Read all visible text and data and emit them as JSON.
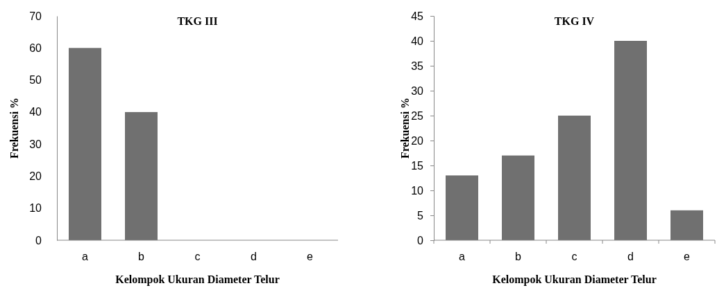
{
  "chart_data": [
    {
      "type": "bar",
      "title": "TKG III",
      "xlabel": "Kelompok Ukuran Diameter Telur",
      "ylabel": "Frekuensi %",
      "categories": [
        "a",
        "b",
        "c",
        "d",
        "e"
      ],
      "values": [
        60,
        40,
        0,
        0,
        0
      ],
      "color": "#707070",
      "ylim": [
        0,
        70
      ],
      "yticks": [
        0,
        10,
        20,
        30,
        40,
        50,
        60,
        70
      ],
      "grid": false
    },
    {
      "type": "bar",
      "title": "TKG IV",
      "xlabel": "Kelompok Ukuran Diameter Telur",
      "ylabel": "Frekuensi %",
      "categories": [
        "a",
        "b",
        "c",
        "d",
        "e"
      ],
      "values": [
        13,
        17,
        25,
        40,
        6
      ],
      "color": "#707070",
      "ylim": [
        0,
        45
      ],
      "yticks": [
        0,
        5,
        10,
        15,
        20,
        25,
        30,
        35,
        40,
        45
      ],
      "grid": false
    }
  ]
}
